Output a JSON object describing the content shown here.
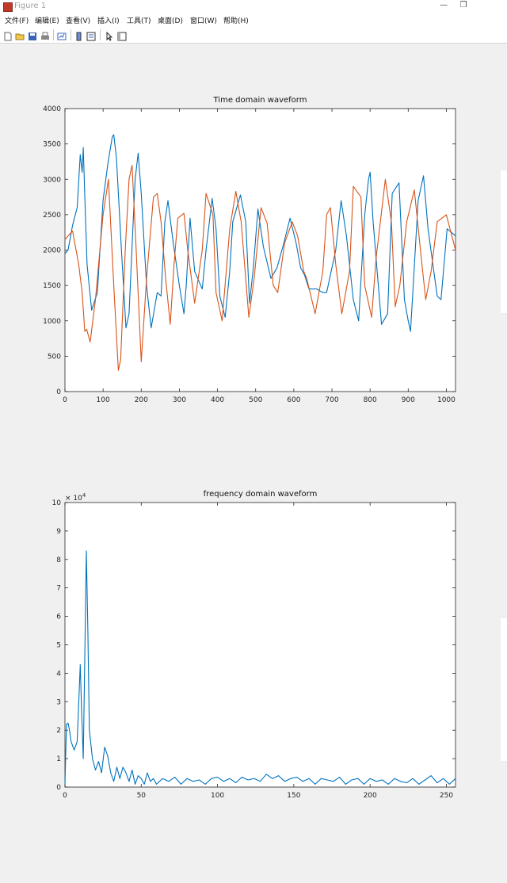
{
  "window": {
    "title": "Figure 1",
    "minimize_glyph": "—",
    "maximize_glyph": "❐"
  },
  "menu": [
    "文件(F)",
    "编辑(E)",
    "查看(V)",
    "插入(I)",
    "工具(T)",
    "桌面(D)",
    "窗口(W)",
    "帮助(H)"
  ],
  "toolbar_icons": [
    "new-figure-icon",
    "open-file-icon",
    "save-icon",
    "print-icon",
    "link-plot-icon",
    "insert-colorbar-icon",
    "insert-legend-icon",
    "edit-plot-arrow-icon",
    "property-inspector-icon"
  ],
  "colors": {
    "series_blue": "#0072BD",
    "series_orange": "#D95319",
    "figure_bg": "#f0f0f0"
  },
  "chart_data": [
    {
      "type": "line",
      "title": "Time domain waveform",
      "xlim": [
        0,
        1024
      ],
      "ylim": [
        0,
        4000
      ],
      "xticks": [
        0,
        100,
        200,
        300,
        400,
        500,
        600,
        700,
        800,
        900,
        1000
      ],
      "yticks": [
        0,
        500,
        1000,
        1500,
        2000,
        2500,
        3000,
        3500,
        4000
      ],
      "grid": false,
      "series": [
        {
          "color": "#0072BD",
          "x": [
            0,
            8,
            20,
            32,
            40,
            45,
            48,
            53,
            58,
            70,
            85,
            100,
            112,
            124,
            128,
            135,
            148,
            160,
            168,
            178,
            184,
            192,
            200,
            214,
            226,
            242,
            252,
            262,
            270,
            284,
            300,
            312,
            318,
            328,
            340,
            360,
            370,
            386,
            396,
            406,
            420,
            432,
            440,
            460,
            474,
            484,
            494,
            506,
            520,
            540,
            556,
            574,
            590,
            606,
            618,
            628,
            640,
            660,
            676,
            686,
            710,
            724,
            738,
            756,
            770,
            786,
            796,
            800,
            808,
            830,
            846,
            858,
            876,
            890,
            900,
            906,
            912,
            926,
            940,
            952,
            976,
            986,
            1002,
            1024
          ],
          "y": [
            1950,
            2000,
            2350,
            2600,
            3350,
            3100,
            3450,
            2600,
            1800,
            1150,
            1400,
            2700,
            3200,
            3600,
            3630,
            3300,
            2000,
            900,
            1100,
            2300,
            3000,
            3370,
            2800,
            1500,
            900,
            1400,
            1350,
            2400,
            2700,
            2100,
            1500,
            1100,
            1500,
            2450,
            1700,
            1450,
            2000,
            2730,
            2300,
            1350,
            1050,
            1700,
            2400,
            2780,
            2400,
            1250,
            1750,
            2580,
            2050,
            1600,
            1750,
            2100,
            2450,
            2100,
            1750,
            1650,
            1450,
            1450,
            1400,
            1400,
            2000,
            2700,
            2200,
            1300,
            1000,
            2500,
            3000,
            3100,
            2400,
            950,
            1100,
            2800,
            2950,
            1300,
            1000,
            850,
            1400,
            2700,
            3050,
            2300,
            1350,
            1300,
            2300,
            2200
          ]
        },
        {
          "color": "#D95319",
          "x": [
            0,
            20,
            36,
            45,
            52,
            57,
            66,
            80,
            100,
            114,
            128,
            140,
            146,
            158,
            168,
            176,
            186,
            200,
            214,
            232,
            242,
            252,
            264,
            276,
            286,
            296,
            312,
            322,
            340,
            360,
            370,
            388,
            396,
            412,
            432,
            448,
            462,
            482,
            496,
            514,
            530,
            546,
            558,
            576,
            596,
            610,
            626,
            634,
            656,
            676,
            686,
            696,
            710,
            726,
            746,
            756,
            776,
            786,
            804,
            816,
            840,
            856,
            866,
            878,
            896,
            916,
            936,
            946,
            960,
            976,
            1000,
            1024
          ],
          "y": [
            2150,
            2270,
            1800,
            1400,
            850,
            880,
            700,
            1300,
            2500,
            3000,
            1500,
            300,
            450,
            2000,
            3000,
            3200,
            2100,
            420,
            1600,
            2750,
            2800,
            2400,
            1600,
            950,
            1800,
            2450,
            2520,
            2000,
            1250,
            2000,
            2800,
            2500,
            1400,
            1000,
            2300,
            2830,
            2400,
            1050,
            1600,
            2600,
            2380,
            1500,
            1400,
            2100,
            2400,
            2200,
            1700,
            1600,
            1100,
            1700,
            2500,
            2600,
            1800,
            1100,
            1700,
            2900,
            2750,
            1500,
            1050,
            1900,
            3000,
            2400,
            1200,
            1500,
            2400,
            2850,
            1800,
            1300,
            1700,
            2400,
            2500,
            2000
          ]
        }
      ]
    },
    {
      "type": "line",
      "title": "frequency domain waveform",
      "xlim": [
        0,
        256
      ],
      "ylim": [
        0,
        10
      ],
      "y_scale_label": "× 10",
      "y_scale_exp": "4",
      "xticks": [
        0,
        50,
        100,
        150,
        200,
        250
      ],
      "yticks": [
        0,
        1,
        2,
        3,
        4,
        5,
        6,
        7,
        8,
        9,
        10
      ],
      "grid": false,
      "series": [
        {
          "color": "#0072BD",
          "x": [
            0,
            1,
            2,
            3,
            4,
            6,
            8,
            10,
            11,
            12,
            13,
            14,
            15,
            16,
            18,
            20,
            22,
            24,
            26,
            28,
            30,
            32,
            34,
            36,
            38,
            40,
            42,
            44,
            46,
            48,
            50,
            52,
            54,
            56,
            58,
            60,
            64,
            68,
            72,
            76,
            80,
            84,
            88,
            92,
            96,
            100,
            104,
            108,
            112,
            116,
            120,
            124,
            128,
            132,
            136,
            140,
            144,
            148,
            152,
            156,
            160,
            164,
            168,
            172,
            176,
            180,
            184,
            188,
            192,
            196,
            200,
            204,
            208,
            212,
            216,
            220,
            224,
            228,
            232,
            236,
            240,
            244,
            248,
            252,
            256
          ],
          "y": [
            0.1,
            2.2,
            2.25,
            2.0,
            1.6,
            1.3,
            1.6,
            4.3,
            2.5,
            1.0,
            4.5,
            8.3,
            5.5,
            2.0,
            1.0,
            0.6,
            0.9,
            0.5,
            1.4,
            1.1,
            0.5,
            0.2,
            0.7,
            0.3,
            0.7,
            0.5,
            0.2,
            0.6,
            0.1,
            0.4,
            0.3,
            0.1,
            0.5,
            0.2,
            0.3,
            0.1,
            0.3,
            0.2,
            0.35,
            0.1,
            0.3,
            0.2,
            0.25,
            0.1,
            0.3,
            0.35,
            0.2,
            0.3,
            0.15,
            0.35,
            0.25,
            0.3,
            0.2,
            0.45,
            0.3,
            0.4,
            0.2,
            0.3,
            0.35,
            0.2,
            0.3,
            0.1,
            0.3,
            0.25,
            0.2,
            0.35,
            0.1,
            0.25,
            0.3,
            0.1,
            0.3,
            0.2,
            0.25,
            0.1,
            0.3,
            0.2,
            0.15,
            0.3,
            0.1,
            0.25,
            0.4,
            0.15,
            0.3,
            0.1,
            0.3
          ]
        }
      ]
    }
  ]
}
